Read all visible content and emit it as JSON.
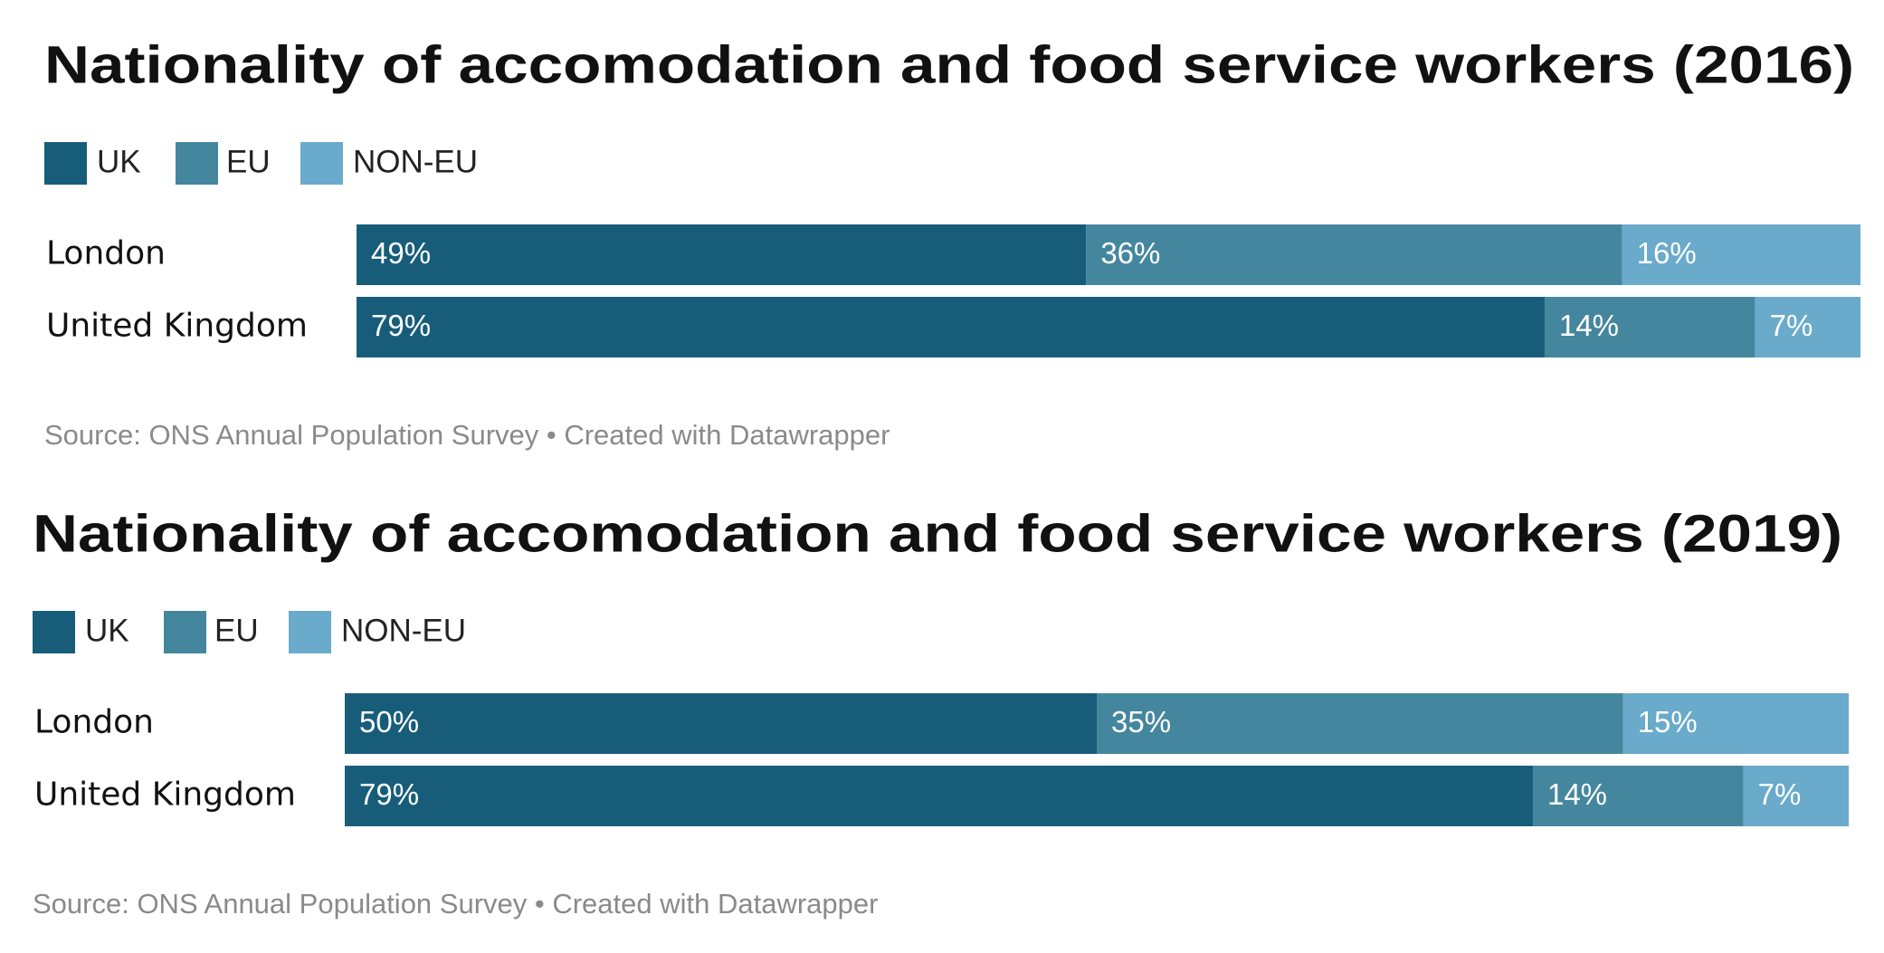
{
  "chart_data": [
    {
      "type": "bar",
      "orientation": "horizontal",
      "stacked": true,
      "title": "Nationality of accomodation and food service workers (2016)",
      "categories": [
        "London",
        "United Kingdom"
      ],
      "series": [
        {
          "name": "UK",
          "color": "#175d7a",
          "values": [
            49,
            79
          ],
          "value_labels": [
            "49%",
            "79%"
          ]
        },
        {
          "name": "EU",
          "color": "#45869f",
          "values": [
            36,
            14
          ],
          "value_labels": [
            "36%",
            "14%"
          ]
        },
        {
          "name": "NON-EU",
          "color": "#6aaaca",
          "values": [
            16,
            7
          ],
          "value_labels": [
            "16%",
            "7%"
          ]
        }
      ],
      "source": "Source: ONS Annual Population Survey • Created with Datawrapper"
    },
    {
      "type": "bar",
      "orientation": "horizontal",
      "stacked": true,
      "title": "Nationality of accomodation and food service workers (2019)",
      "categories": [
        "London",
        "United Kingdom"
      ],
      "series": [
        {
          "name": "UK",
          "color": "#175d7a",
          "values": [
            50,
            79
          ],
          "value_labels": [
            "50%",
            "79%"
          ]
        },
        {
          "name": "EU",
          "color": "#45869f",
          "values": [
            35,
            14
          ],
          "value_labels": [
            "35%",
            "14%"
          ]
        },
        {
          "name": "NON-EU",
          "color": "#6aaaca",
          "values": [
            15,
            7
          ],
          "value_labels": [
            "15%",
            "7%"
          ]
        }
      ],
      "source": "Source: ONS Annual Population Survey • Created with Datawrapper"
    }
  ]
}
